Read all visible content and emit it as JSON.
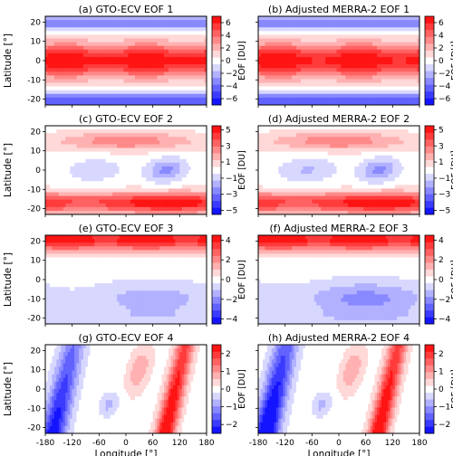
{
  "chart_data": {
    "type": "heatmap",
    "colormap": "bwr",
    "xlabel": "Longitude [°]",
    "ylabel": "Latitude  [°]",
    "colorbar_label": "EOF [DU]",
    "x_ticks": [
      "-180",
      "-120",
      "-60",
      "0",
      "60",
      "120",
      "180"
    ],
    "y_ticks": [
      "-20",
      "-10",
      "0",
      "10",
      "20"
    ],
    "xlim": [
      -180,
      180
    ],
    "ylim": [
      -23,
      23
    ],
    "rows": [
      {
        "eof": 1,
        "range": [
          -7,
          7
        ],
        "cbar_ticks": [
          "6",
          "4",
          "2",
          "0",
          "−2",
          "−4",
          "−6"
        ],
        "panels": [
          {
            "title": "(a) GTO-ECV  EOF 1"
          },
          {
            "title": "(b) Adjusted MERRA-2  EOF 1"
          }
        ]
      },
      {
        "eof": 2,
        "range": [
          -5.5,
          5.5
        ],
        "cbar_ticks": [
          "5",
          "3",
          "1",
          "−1",
          "−3",
          "−5"
        ],
        "panels": [
          {
            "title": "(c) GTO-ECV  EOF 2"
          },
          {
            "title": "(d) Adjusted MERRA-2  EOF 2"
          }
        ]
      },
      {
        "eof": 3,
        "range": [
          -4.5,
          4.5
        ],
        "cbar_ticks": [
          "4",
          "2",
          "0",
          "−2",
          "−4"
        ],
        "panels": [
          {
            "title": "(e) GTO-ECV  EOF 3"
          },
          {
            "title": "(f) Adjusted MERRA-2  EOF 3"
          }
        ]
      },
      {
        "eof": 4,
        "range": [
          -2.5,
          2.5
        ],
        "cbar_ticks": [
          "2",
          "1",
          "0",
          "−1",
          "−2"
        ],
        "panels": [
          {
            "title": "(g) GTO-ECV  EOF 4"
          },
          {
            "title": "(h) Adjusted MERRA-2  EOF 4"
          }
        ]
      }
    ]
  }
}
